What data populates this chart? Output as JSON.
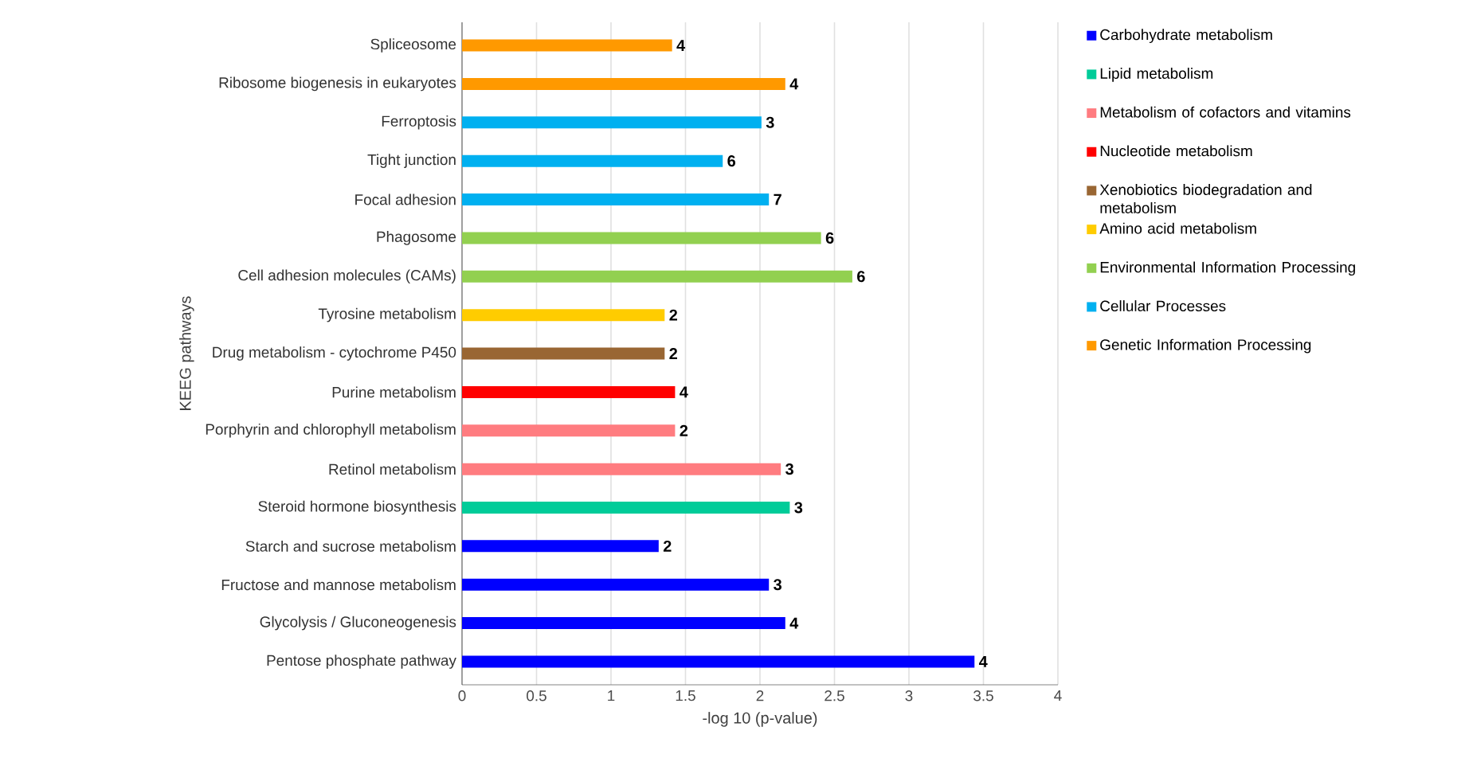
{
  "chart_data": {
    "type": "bar",
    "orientation": "horizontal",
    "stacked": true,
    "xlabel": "-log 10 (p-value)",
    "ylabel": "KEEG pathways",
    "categories": [
      "Spliceosome",
      "Ribosome biogenesis in eukaryotes",
      "Ferroptosis",
      "Tight junction",
      "Focal adhesion",
      "Phagosome",
      "Cell adhesion molecules (CAMs)",
      "Tyrosine metabolism",
      "Drug metabolism - cytochrome P450",
      "Purine metabolism",
      "Porphyrin and chlorophyll metabolism",
      "Retinol metabolism",
      "Steroid hormone biosynthesis",
      "Starch and sucrose metabolism",
      "Fructose and mannose metabolism",
      "Glycolysis / Gluconeogenesis",
      "Pentose phosphate pathway"
    ],
    "series": [
      {
        "name": "Carbohydrate metabolism",
        "color": "#0000ff",
        "values": [
          null,
          null,
          null,
          null,
          null,
          null,
          null,
          null,
          null,
          null,
          null,
          null,
          null,
          1.32,
          2.06,
          2.17,
          3.44
        ]
      },
      {
        "name": "Lipid metabolism",
        "color": "#00cc99",
        "values": [
          null,
          null,
          null,
          null,
          null,
          null,
          null,
          null,
          null,
          null,
          null,
          null,
          2.2,
          null,
          null,
          null,
          null
        ]
      },
      {
        "name": "Metabolism of cofactors and vitamins",
        "color": "#ff7c80",
        "values": [
          null,
          null,
          null,
          null,
          null,
          null,
          null,
          null,
          null,
          null,
          1.43,
          2.14,
          null,
          null,
          null,
          null,
          null
        ]
      },
      {
        "name": "Nucleotide metabolism",
        "color": "#ff0000",
        "values": [
          null,
          null,
          null,
          null,
          null,
          null,
          null,
          null,
          null,
          1.43,
          null,
          null,
          null,
          null,
          null,
          null,
          null
        ]
      },
      {
        "name": "Xenobiotics biodegradation and metabolism",
        "color": "#996633",
        "values": [
          null,
          null,
          null,
          null,
          null,
          null,
          null,
          null,
          1.36,
          null,
          null,
          null,
          null,
          null,
          null,
          null,
          null
        ]
      },
      {
        "name": "Amino acid metabolism",
        "color": "#ffcc00",
        "values": [
          null,
          null,
          null,
          null,
          null,
          null,
          null,
          1.36,
          null,
          null,
          null,
          null,
          null,
          null,
          null,
          null,
          null
        ]
      },
      {
        "name": "Environmental Information Processing",
        "color": "#92d050",
        "values": [
          null,
          null,
          null,
          null,
          null,
          2.41,
          2.62,
          null,
          null,
          null,
          null,
          null,
          null,
          null,
          null,
          null,
          null
        ]
      },
      {
        "name": "Cellular Processes",
        "color": "#00b0f0",
        "values": [
          null,
          null,
          2.01,
          1.75,
          2.06,
          null,
          null,
          null,
          null,
          null,
          null,
          null,
          null,
          null,
          null,
          null,
          null
        ]
      },
      {
        "name": "Genetic Information Processing",
        "color": "#ff9900",
        "values": [
          1.41,
          2.17,
          null,
          null,
          null,
          null,
          null,
          null,
          null,
          null,
          null,
          null,
          null,
          null,
          null,
          null,
          null
        ]
      }
    ],
    "annotations": [
      {
        "text": "4",
        "x": 1.41,
        "y": "Spliceosome"
      },
      {
        "text": "4",
        "x": 2.17,
        "y": "Ribosome biogenesis in eukaryotes"
      },
      {
        "text": "3",
        "x": 2.01,
        "y": "Ferroptosis"
      },
      {
        "text": "6",
        "x": 1.75,
        "y": "Tight junction"
      },
      {
        "text": "7",
        "x": 2.06,
        "y": "Focal adhesion"
      },
      {
        "text": "6",
        "x": 2.41,
        "y": "Phagosome"
      },
      {
        "text": "6",
        "x": 2.62,
        "y": "Cell adhesion molecules (CAMs)"
      },
      {
        "text": "2",
        "x": 1.36,
        "y": "Tyrosine metabolism"
      },
      {
        "text": "2",
        "x": 1.36,
        "y": "Drug metabolism - cytochrome P450"
      },
      {
        "text": "4",
        "x": 1.43,
        "y": "Purine metabolism"
      },
      {
        "text": "2",
        "x": 1.43,
        "y": "Porphyrin and chlorophyll metabolism"
      },
      {
        "text": "3",
        "x": 2.14,
        "y": "Retinol metabolism"
      },
      {
        "text": "3",
        "x": 2.2,
        "y": "Steroid hormone biosynthesis"
      },
      {
        "text": "2",
        "x": 1.32,
        "y": "Starch and sucrose metabolism"
      },
      {
        "text": "3",
        "x": 2.06,
        "y": "Fructose and mannose metabolism"
      },
      {
        "text": "4",
        "x": 2.17,
        "y": "Glycolysis / Gluconeogenesis"
      },
      {
        "text": "4",
        "x": 3.44,
        "y": "Pentose phosphate pathway"
      }
    ],
    "xlim": [
      0,
      4
    ],
    "xticks": [
      0,
      0.5,
      1,
      1.5,
      2,
      2.5,
      3,
      3.5,
      4
    ],
    "grid": "x",
    "legend": "right"
  }
}
